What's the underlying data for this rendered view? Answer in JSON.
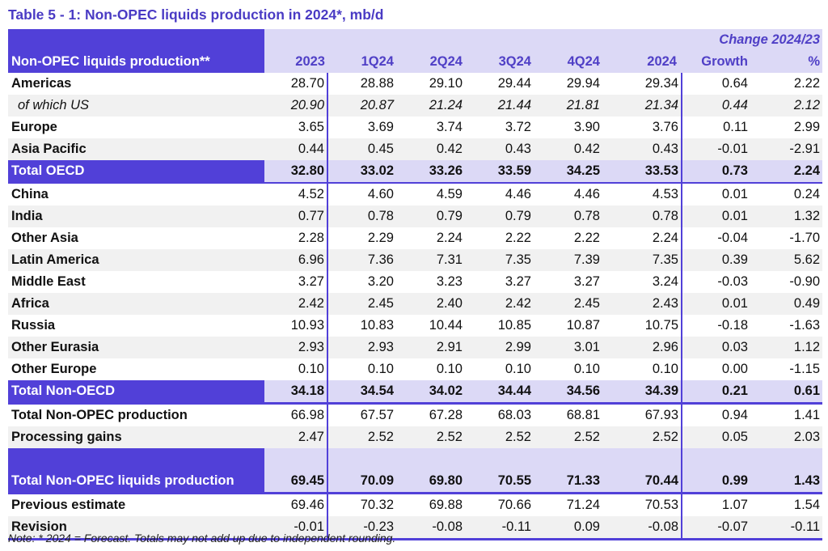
{
  "title": "Table 5 - 1: Non-OPEC liquids production in 2024*, mb/d",
  "header": {
    "change_label": "Change 2024/23",
    "row_label": "Non-OPEC liquids production**",
    "columns": [
      "2023",
      "1Q24",
      "2Q24",
      "3Q24",
      "4Q24",
      "2024",
      "Growth",
      "%"
    ]
  },
  "rows": [
    {
      "label": "Americas",
      "values": [
        "28.70",
        "28.88",
        "29.10",
        "29.44",
        "29.94",
        "29.34",
        "0.64",
        "2.22"
      ],
      "style": "bold"
    },
    {
      "label": "of which US",
      "values": [
        "20.90",
        "20.87",
        "21.24",
        "21.44",
        "21.81",
        "21.34",
        "0.44",
        "2.12"
      ],
      "style": "italic"
    },
    {
      "label": "Europe",
      "values": [
        "3.65",
        "3.69",
        "3.74",
        "3.72",
        "3.90",
        "3.76",
        "0.11",
        "2.99"
      ],
      "style": "bold"
    },
    {
      "label": "Asia Pacific",
      "values": [
        "0.44",
        "0.45",
        "0.42",
        "0.43",
        "0.42",
        "0.43",
        "-0.01",
        "-2.91"
      ],
      "style": "bold"
    },
    {
      "label": "Total OECD",
      "values": [
        "32.80",
        "33.02",
        "33.26",
        "33.59",
        "34.25",
        "33.53",
        "0.73",
        "2.24"
      ],
      "style": "total"
    },
    {
      "label": "China",
      "values": [
        "4.52",
        "4.60",
        "4.59",
        "4.46",
        "4.46",
        "4.53",
        "0.01",
        "0.24"
      ],
      "style": "bold"
    },
    {
      "label": "India",
      "values": [
        "0.77",
        "0.78",
        "0.79",
        "0.79",
        "0.78",
        "0.78",
        "0.01",
        "1.32"
      ],
      "style": "bold"
    },
    {
      "label": "Other Asia",
      "values": [
        "2.28",
        "2.29",
        "2.24",
        "2.22",
        "2.22",
        "2.24",
        "-0.04",
        "-1.70"
      ],
      "style": "bold"
    },
    {
      "label": "Latin America",
      "values": [
        "6.96",
        "7.36",
        "7.31",
        "7.35",
        "7.39",
        "7.35",
        "0.39",
        "5.62"
      ],
      "style": "bold"
    },
    {
      "label": "Middle East",
      "values": [
        "3.27",
        "3.20",
        "3.23",
        "3.27",
        "3.27",
        "3.24",
        "-0.03",
        "-0.90"
      ],
      "style": "bold"
    },
    {
      "label": "Africa",
      "values": [
        "2.42",
        "2.45",
        "2.40",
        "2.42",
        "2.45",
        "2.43",
        "0.01",
        "0.49"
      ],
      "style": "bold"
    },
    {
      "label": "Russia",
      "values": [
        "10.93",
        "10.83",
        "10.44",
        "10.85",
        "10.87",
        "10.75",
        "-0.18",
        "-1.63"
      ],
      "style": "bold"
    },
    {
      "label": "Other Eurasia",
      "values": [
        "2.93",
        "2.93",
        "2.91",
        "2.99",
        "3.01",
        "2.96",
        "0.03",
        "1.12"
      ],
      "style": "bold"
    },
    {
      "label": "Other Europe",
      "values": [
        "0.10",
        "0.10",
        "0.10",
        "0.10",
        "0.10",
        "0.10",
        "0.00",
        "-1.15"
      ],
      "style": "bold"
    },
    {
      "label": "Total Non-OECD",
      "values": [
        "34.18",
        "34.54",
        "34.02",
        "34.44",
        "34.56",
        "34.39",
        "0.21",
        "0.61"
      ],
      "style": "total"
    },
    {
      "label": "Total Non-OPEC production",
      "values": [
        "66.98",
        "67.57",
        "67.28",
        "68.03",
        "68.81",
        "67.93",
        "0.94",
        "1.41"
      ],
      "style": "bold"
    },
    {
      "label": "Processing gains",
      "values": [
        "2.47",
        "2.52",
        "2.52",
        "2.52",
        "2.52",
        "2.52",
        "0.05",
        "2.03"
      ],
      "style": "bold"
    },
    {
      "label": "Total Non-OPEC liquids production",
      "values": [
        "69.45",
        "70.09",
        "69.80",
        "70.55",
        "71.33",
        "70.44",
        "0.99",
        "1.43"
      ],
      "style": "grand"
    },
    {
      "label": "Previous estimate",
      "values": [
        "69.46",
        "70.32",
        "69.88",
        "70.66",
        "71.24",
        "70.53",
        "1.07",
        "1.54"
      ],
      "style": "bold"
    },
    {
      "label": "Revision",
      "values": [
        "-0.01",
        "-0.23",
        "-0.08",
        "-0.11",
        "0.09",
        "-0.08",
        "-0.07",
        "-0.11"
      ],
      "style": "bold"
    }
  ],
  "note": "Note: * 2024 = Forecast. Totals may not add up due to independent rounding.",
  "colors": {
    "accent": "#5140d8",
    "header_bg": "#dcd9f6",
    "title": "#4a3bc4"
  }
}
